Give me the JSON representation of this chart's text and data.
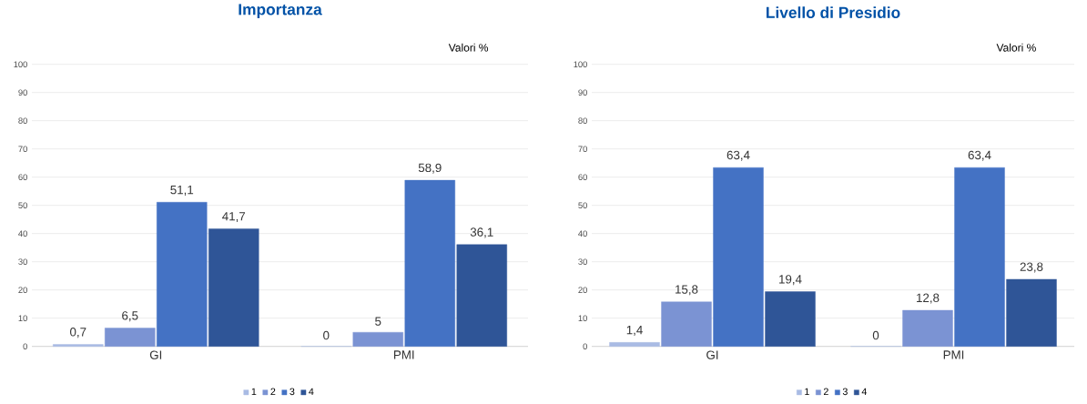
{
  "chart_data": [
    {
      "type": "bar",
      "title": "Importanza",
      "annotations": [
        "Valori %"
      ],
      "categories": [
        "GI",
        "PMI"
      ],
      "series": [
        {
          "name": "1",
          "color": "#a9bbe4",
          "values": [
            0.7,
            0
          ],
          "value_labels": [
            "0,7",
            "0"
          ]
        },
        {
          "name": "2",
          "color": "#7b93d3",
          "values": [
            6.5,
            5
          ],
          "value_labels": [
            "6,5",
            "5"
          ]
        },
        {
          "name": "3",
          "color": "#4472c4",
          "values": [
            51.1,
            58.9
          ],
          "value_labels": [
            "51,1",
            "58,9"
          ]
        },
        {
          "name": "4",
          "color": "#2f5597",
          "values": [
            41.7,
            36.1
          ],
          "value_labels": [
            "41,7",
            "36,1"
          ]
        }
      ],
      "ylim": [
        0,
        100
      ],
      "yticks": [
        0,
        10,
        20,
        30,
        40,
        50,
        60,
        70,
        80,
        90,
        100
      ],
      "grid": "y",
      "legend": "bottom"
    },
    {
      "type": "bar",
      "title": "Livello di Presidio",
      "annotations": [
        "Valori %"
      ],
      "categories": [
        "GI",
        "PMI"
      ],
      "series": [
        {
          "name": "1",
          "color": "#a9bbe4",
          "values": [
            1.4,
            0
          ],
          "value_labels": [
            "1,4",
            "0"
          ]
        },
        {
          "name": "2",
          "color": "#7b93d3",
          "values": [
            15.8,
            12.8
          ],
          "value_labels": [
            "15,8",
            "12,8"
          ]
        },
        {
          "name": "3",
          "color": "#4472c4",
          "values": [
            63.4,
            63.4
          ],
          "value_labels": [
            "63,4",
            "63,4"
          ]
        },
        {
          "name": "4",
          "color": "#2f5597",
          "values": [
            19.4,
            23.8
          ],
          "value_labels": [
            "19,4",
            "23,8"
          ]
        }
      ],
      "ylim": [
        0,
        100
      ],
      "yticks": [
        0,
        10,
        20,
        30,
        40,
        50,
        60,
        70,
        80,
        90,
        100
      ],
      "grid": "y",
      "legend": "bottom"
    }
  ]
}
